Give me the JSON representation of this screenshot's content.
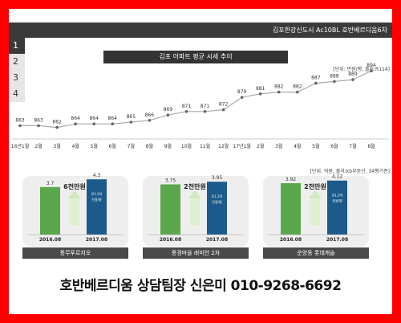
{
  "header": {
    "title": "김포한강신도시 Ac10BL 호반베르디움6차"
  },
  "tabs": [
    "1",
    "2",
    "3",
    "4"
  ],
  "chart_data": [
    {
      "type": "line",
      "title": "김포 아파트 평균 시세 추이",
      "unit_note": "[단위: 만원/평, 출처:R114]",
      "categories": [
        "16년1월",
        "2월",
        "3월",
        "4월",
        "5월",
        "6월",
        "7월",
        "8월",
        "9월",
        "10월",
        "11월",
        "12월",
        "17년1월",
        "2월",
        "3월",
        "4월",
        "5월",
        "6월",
        "7월",
        "8월"
      ],
      "values": [
        863,
        863,
        862,
        864,
        864,
        864,
        865,
        866,
        869,
        871,
        871,
        872,
        879,
        881,
        882,
        882,
        887,
        888,
        889,
        894
      ],
      "colors": {
        "line": "#aaaaaa",
        "marker": "#666666"
      }
    },
    {
      "type": "bar",
      "title": "풍무푸르지오",
      "unit_note": "[단위: 억원, 출처:kb부동산, 34평기준]",
      "categories": [
        "2016.08",
        "2017.08"
      ],
      "values": [
        3.7,
        4.3
      ],
      "arrow_label": "6천만원",
      "bar_note": [
        "로1.2억",
        "전용/평"
      ],
      "ylim": [
        0,
        5.0
      ],
      "colors": [
        "#5aa84b",
        "#1b5a8a"
      ]
    },
    {
      "type": "bar",
      "title": "풍경마을 래미안 2차",
      "categories": [
        "2016.08",
        "2017.08"
      ],
      "values": [
        3.75,
        3.95
      ],
      "arrow_label": "2천만원",
      "bar_note": [
        "로1.2억",
        "전용/평"
      ],
      "ylim": [
        0,
        4.8
      ],
      "colors": [
        "#5aa84b",
        "#1b5a8a"
      ]
    },
    {
      "type": "bar",
      "title": "운양동 롯데캐슬",
      "categories": [
        "2016.08",
        "2017.08"
      ],
      "values": [
        3.92,
        4.12
      ],
      "arrow_label": "2천만원",
      "bar_note": [
        "로1.2억",
        "전용/평"
      ],
      "ylim": [
        0,
        4.9
      ],
      "colors": [
        "#5aa84b",
        "#1b5a8a"
      ]
    }
  ],
  "footer": {
    "text": "호반베르디움 상담팀장 신은미 010-9268-6692"
  }
}
